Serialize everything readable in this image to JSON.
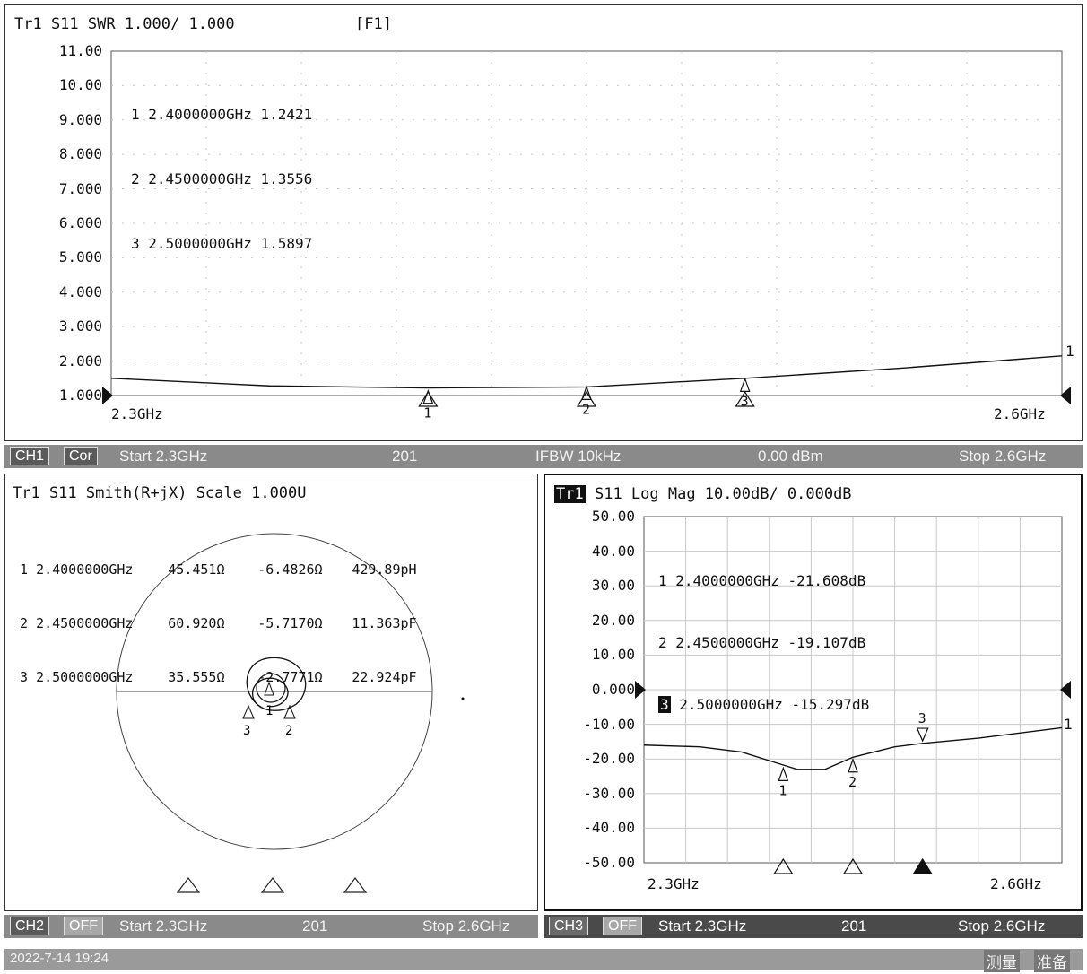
{
  "ch1": {
    "header": "Tr1 S11 SWR 1.000/ 1.000",
    "fkey": "[F1]",
    "y_ticks": [
      "11.00",
      "10.00",
      "9.000",
      "8.000",
      "7.000",
      "6.000",
      "5.000",
      "4.000",
      "3.000",
      "2.000",
      "1.000"
    ],
    "markers": [
      {
        "num": "1",
        "text": "2.4000000GHz 1.2421"
      },
      {
        "num": "2",
        "text": "2.4500000GHz 1.3556"
      },
      {
        "num": "3",
        "text": "2.5000000GHz 1.5897"
      }
    ],
    "x_start_label": "2.3GHz",
    "x_stop_label": "2.6GHz",
    "trace_end_label": "1",
    "status": {
      "ch": "CH1",
      "cor": "Cor",
      "start": "Start 2.3GHz",
      "points": "201",
      "ifbw": "IFBW 10kHz",
      "power": "0.00 dBm",
      "stop": "Stop 2.6GHz"
    }
  },
  "ch2": {
    "header": "Tr1 S11 Smith(R+jX) Scale 1.000U",
    "markers": [
      {
        "num": "1",
        "freq": "2.4000000GHz",
        "r": "45.451Ω",
        "x": "-6.4826Ω",
        "c": "429.89pH"
      },
      {
        "num": "2",
        "freq": "2.4500000GHz",
        "r": "60.920Ω",
        "x": "-5.7170Ω",
        "c": "11.363pF"
      },
      {
        "num": "3",
        "freq": "2.5000000GHz",
        "r": "35.555Ω",
        "x": "-2.7771Ω",
        "c": "22.924pF"
      }
    ],
    "status": {
      "ch": "CH2",
      "off": "OFF",
      "start": "Start 2.3GHz",
      "points": "201",
      "stop": "Stop 2.6GHz"
    }
  },
  "ch3": {
    "trace": "Tr1",
    "header": "S11 Log Mag 10.00dB/ 0.000dB",
    "y_ticks": [
      "50.00",
      "40.00",
      "30.00",
      "20.00",
      "10.00",
      "0.000",
      "-10.00",
      "-20.00",
      "-30.00",
      "-40.00",
      "-50.00"
    ],
    "markers": [
      {
        "num": "1",
        "text": "2.4000000GHz -21.608dB"
      },
      {
        "num": "2",
        "text": "2.4500000GHz -19.107dB"
      },
      {
        "num": "3",
        "text": "2.5000000GHz -15.297dB"
      }
    ],
    "x_start_label": "2.3GHz",
    "x_stop_label": "2.6GHz",
    "trace_end_label": "1",
    "status": {
      "ch": "CH3",
      "off": "OFF",
      "start": "Start 2.3GHz",
      "points": "201",
      "stop": "Stop 2.6GHz"
    }
  },
  "footer": {
    "datetime": "2022-7-14 19:24",
    "measure": "测量",
    "ready": "准备"
  },
  "colors": {
    "status_bar": "#8a8a8a",
    "status_dark": "#4a4a4a",
    "trace": "#111111",
    "grid": "#bfbfbf"
  },
  "chart_data": [
    {
      "type": "line",
      "title": "Tr1 S11 SWR 1.000/ 1.000",
      "xlabel": "",
      "ylabel": "",
      "xlim": [
        2.3,
        2.6
      ],
      "ylim": [
        1,
        11
      ],
      "x": [
        2.3,
        2.35,
        2.4,
        2.45,
        2.5,
        2.55,
        2.6
      ],
      "series": [
        {
          "values": [
            1.5,
            1.28,
            1.22,
            1.25,
            1.5,
            1.8,
            2.15
          ]
        }
      ],
      "markers": [
        {
          "x": 2.4,
          "y": 1.2421
        },
        {
          "x": 2.45,
          "y": 1.3556
        },
        {
          "x": 2.5,
          "y": 1.5897
        }
      ]
    },
    {
      "type": "line",
      "title": "S11 Log Mag 10.00dB/ 0.000dB",
      "xlabel": "",
      "ylabel": "",
      "xlim": [
        2.3,
        2.6
      ],
      "ylim": [
        -50,
        50
      ],
      "x": [
        2.3,
        2.34,
        2.37,
        2.39,
        2.41,
        2.43,
        2.45,
        2.48,
        2.5,
        2.54,
        2.58,
        2.6
      ],
      "series": [
        {
          "values": [
            -16,
            -16.5,
            -18,
            -20.5,
            -23,
            -23,
            -19.5,
            -16.5,
            -15.5,
            -14,
            -12,
            -11
          ]
        }
      ],
      "markers": [
        {
          "x": 2.4,
          "y": -21.608
        },
        {
          "x": 2.45,
          "y": -19.107
        },
        {
          "x": 2.5,
          "y": -15.297
        }
      ]
    }
  ]
}
